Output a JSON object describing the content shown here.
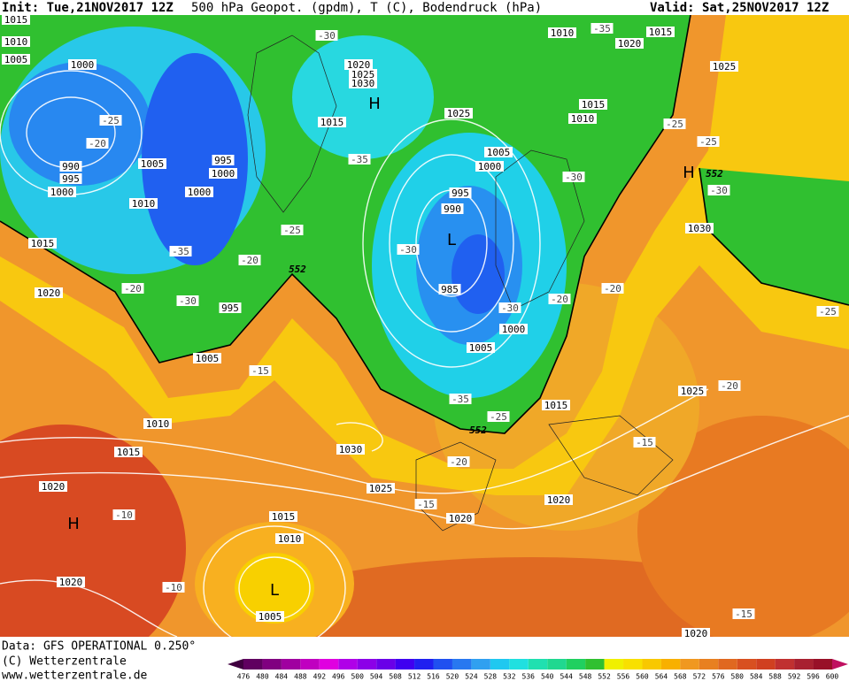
{
  "header": {
    "init": "Init: Tue,21NOV2017 12Z",
    "title": "500 hPa Geopot. (gpdm), T (C), Bodendruck (hPa)",
    "valid": "Valid: Sat,25NOV2017 12Z"
  },
  "footer": {
    "data": "Data: GFS OPERATIONAL 0.250°",
    "copyright": "(C) Wetterzentrale",
    "url": "www.wetterzentrale.de"
  },
  "legend": {
    "values": [
      476,
      480,
      484,
      488,
      492,
      496,
      500,
      504,
      508,
      512,
      516,
      520,
      524,
      528,
      532,
      536,
      540,
      544,
      548,
      552,
      556,
      560,
      564,
      568,
      572,
      576,
      580,
      584,
      588,
      592,
      596,
      600
    ],
    "colors": [
      "#400040",
      "#600060",
      "#800080",
      "#a000a0",
      "#c000c0",
      "#e000e0",
      "#b000e8",
      "#8c00e8",
      "#6a00e8",
      "#4000f0",
      "#2020f0",
      "#2050f0",
      "#2878f0",
      "#30a0f0",
      "#20c8f0",
      "#20e0e0",
      "#20e0b0",
      "#20d890",
      "#20d060",
      "#30c030",
      "#f0f000",
      "#f8e000",
      "#f8c800",
      "#f8b000",
      "#f09820",
      "#e88020",
      "#e06820",
      "#d85020",
      "#d04020",
      "#c03030",
      "#a82030",
      "#981028",
      "#c01060"
    ]
  },
  "map": {
    "pressure_labels": [
      "1015",
      "1010",
      "1005",
      "1000",
      "990",
      "995",
      "1000",
      "1005",
      "995",
      "1000",
      "1000",
      "1010",
      "1015",
      "1020",
      "995",
      "1005",
      "1020",
      "1025",
      "1030",
      "1015",
      "1010",
      "1020",
      "1015",
      "1025",
      "1015",
      "1010",
      "1025",
      "1005",
      "1000",
      "995",
      "990",
      "985",
      "1000",
      "1005",
      "1015",
      "1025",
      "1030",
      "1010",
      "1015",
      "1030",
      "1025",
      "1020",
      "1020",
      "1020",
      "1015",
      "1010",
      "1005",
      "1020",
      "1020"
    ],
    "temperature_labels": [
      "-25",
      "-20",
      "-35",
      "-20",
      "-30",
      "-20",
      "-25",
      "-35",
      "-30",
      "-30",
      "-25",
      "-25",
      "-30",
      "-20",
      "-20",
      "-30",
      "-35",
      "-25",
      "-15",
      "-20",
      "-15",
      "-15",
      "-20",
      "-25",
      "-10",
      "-10",
      "-15",
      "-30",
      "-35"
    ],
    "height_labels": [
      "552",
      "552",
      "552"
    ],
    "highs": [
      "H",
      "H",
      "H"
    ],
    "lows": [
      "L",
      "L"
    ]
  }
}
